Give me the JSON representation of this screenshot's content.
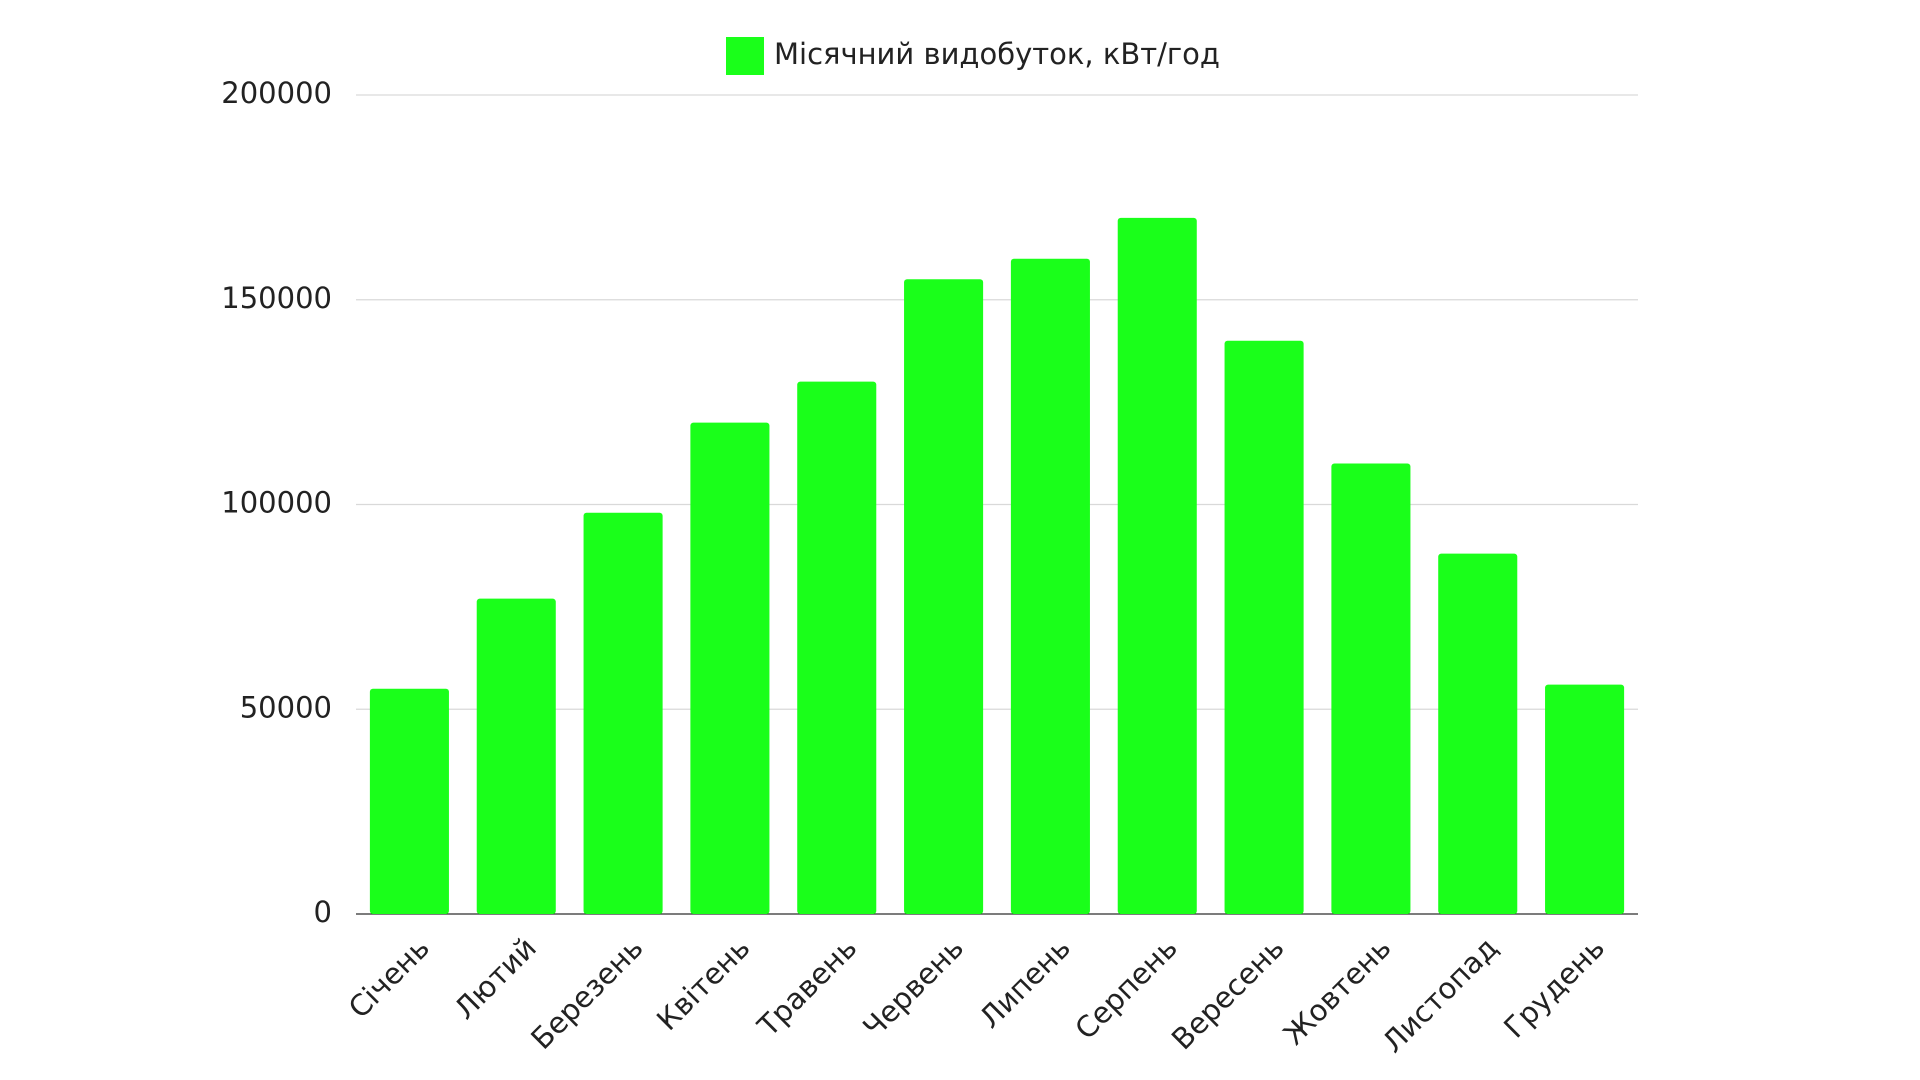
{
  "chart_data": {
    "type": "bar",
    "categories": [
      "Січень",
      "Лютий",
      "Березень",
      "Квітень",
      "Травень",
      "Червень",
      "Липень",
      "Серпень",
      "Вересень",
      "Жовтень",
      "Листопад",
      "Грудень"
    ],
    "series": [
      {
        "name": "Місячний видобуток, кВт/год",
        "color": "#1aff1a",
        "values": [
          55000,
          77000,
          98000,
          120000,
          130000,
          155000,
          160000,
          170000,
          140000,
          110000,
          88000,
          56000
        ]
      }
    ],
    "ylim": [
      0,
      200000
    ],
    "yticks": [
      0,
      50000,
      100000,
      150000,
      200000
    ],
    "grid": true,
    "legend": "top"
  }
}
